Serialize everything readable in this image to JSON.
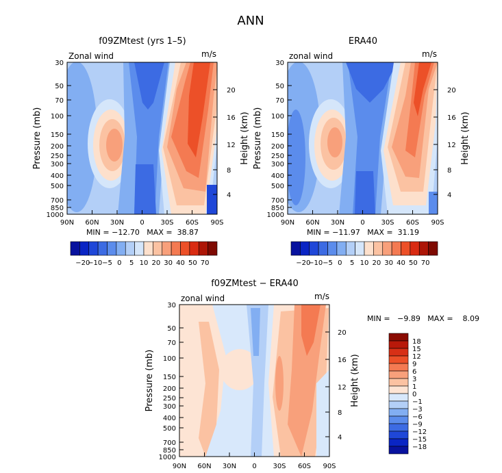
{
  "figure_title": "ANN",
  "panels": [
    {
      "id": "p1",
      "title": "f09ZMtest (yrs 1–5)",
      "variable": "Zonal wind",
      "units": "m/s",
      "ylabel": "Pressure (mb)",
      "y2label": "Height (km)",
      "stats": "MIN = −12.70   MAX =  38.87"
    },
    {
      "id": "p2",
      "title": "ERA40",
      "variable": "zonal wind",
      "units": "m/s",
      "ylabel": "Pressure (mb)",
      "y2label": "Height (km)",
      "stats": "MIN = −11.97   MAX =  31.19"
    },
    {
      "id": "p3",
      "title": "f09ZMtest − ERA40",
      "variable": "zonal wind",
      "units": "m/s",
      "ylabel": "Pressure (mb)",
      "y2label": "Height (km)",
      "stats": "MIN =   −9.89   MAX =    8.09"
    }
  ],
  "colorbar_top": {
    "labels": [
      "−20",
      "−10",
      "−5",
      "0",
      "5",
      "10",
      "20",
      "30",
      "40",
      "50",
      "70"
    ],
    "colors": [
      "#08129e",
      "#0a25c4",
      "#1f47d8",
      "#3c6be3",
      "#5b8cec",
      "#82aef2",
      "#b3cff7",
      "#d5e6fa",
      "#fde0cc",
      "#fbc2a2",
      "#f8a07b",
      "#f47a52",
      "#ec5028",
      "#d92b12",
      "#ad1607",
      "#7e0a02"
    ]
  },
  "colorbar_diff": {
    "labels": [
      "18",
      "15",
      "12",
      "9",
      "6",
      "3",
      "1",
      "0",
      "−1",
      "−3",
      "−6",
      "−9",
      "−12",
      "−15",
      "−18"
    ],
    "colors": [
      "#8a0b02",
      "#b8190a",
      "#d73016",
      "#ec5028",
      "#f47a52",
      "#f8a07b",
      "#fbc2a2",
      "#fde4d4",
      "#d8e8fb",
      "#b3cff7",
      "#82aef2",
      "#5b8cec",
      "#3c6be3",
      "#1f47d8",
      "#0a25c4",
      "#08129e"
    ]
  },
  "chart_data": [
    {
      "type": "heatmap",
      "panel": "f09ZMtest (yrs 1–5)",
      "x_tick_labels": [
        "90N",
        "60N",
        "30N",
        "0",
        "30S",
        "60S",
        "90S"
      ],
      "y_tick_labels": [
        "30",
        "50",
        "70",
        "100",
        "150",
        "200",
        "250",
        "300",
        "400",
        "500",
        "700",
        "850",
        "1000"
      ],
      "y2_tick_labels": [
        "20",
        "16",
        "12",
        "8",
        "4"
      ],
      "xlim": [
        90,
        -90
      ],
      "ylim": [
        1000,
        30
      ],
      "yscale": "log",
      "min": -12.7,
      "max": 38.87,
      "features": [
        {
          "lat": 38,
          "p": 200,
          "u": 25
        },
        {
          "lat": -40,
          "p": 200,
          "u": 30
        },
        {
          "lat": -60,
          "p": 40,
          "u": 38.87
        },
        {
          "lat": 0,
          "p": 50,
          "u": -12.7
        },
        {
          "lat": 0,
          "p": 400,
          "u": -8
        }
      ]
    },
    {
      "type": "heatmap",
      "panel": "ERA40",
      "x_tick_labels": [
        "90N",
        "60N",
        "30N",
        "0",
        "30S",
        "60S",
        "90S"
      ],
      "y_tick_labels": [
        "30",
        "50",
        "70",
        "100",
        "150",
        "200",
        "250",
        "300",
        "400",
        "500",
        "700",
        "850",
        "1000"
      ],
      "y2_tick_labels": [
        "20",
        "16",
        "12",
        "8",
        "4"
      ],
      "xlim": [
        90,
        -90
      ],
      "ylim": [
        1000,
        30
      ],
      "yscale": "log",
      "min": -11.97,
      "max": 31.19,
      "features": [
        {
          "lat": 38,
          "p": 200,
          "u": 25
        },
        {
          "lat": -45,
          "p": 200,
          "u": 30
        },
        {
          "lat": -60,
          "p": 40,
          "u": 31.19
        },
        {
          "lat": 0,
          "p": 50,
          "u": -11.97
        }
      ]
    },
    {
      "type": "heatmap",
      "panel": "f09ZMtest − ERA40",
      "x_tick_labels": [
        "90N",
        "60N",
        "30N",
        "0",
        "30S",
        "60S",
        "90S"
      ],
      "y_tick_labels": [
        "30",
        "50",
        "70",
        "100",
        "150",
        "200",
        "250",
        "300",
        "400",
        "500",
        "700",
        "850",
        "1000"
      ],
      "y2_tick_labels": [
        "20",
        "16",
        "12",
        "8",
        "4"
      ],
      "xlim": [
        90,
        -90
      ],
      "ylim": [
        1000,
        30
      ],
      "yscale": "log",
      "min": -9.89,
      "max": 8.09,
      "features": [
        {
          "lat": -60,
          "p": 40,
          "u": 8.09
        },
        {
          "lat": -35,
          "p": 150,
          "u": 6
        },
        {
          "lat": 0,
          "p": 50,
          "u": -9.89
        },
        {
          "lat": 50,
          "p": 100,
          "u": 2
        }
      ]
    }
  ]
}
